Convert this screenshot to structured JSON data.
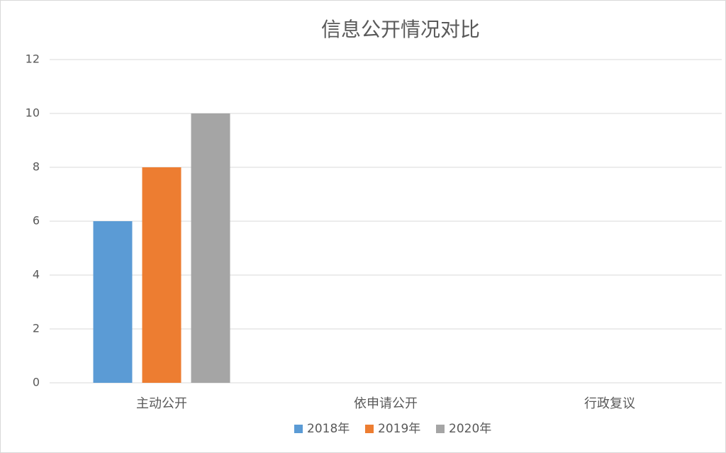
{
  "chart_data": {
    "type": "bar",
    "title": "信息公开情况对比",
    "categories": [
      "主动公开",
      "依申请公开",
      "行政复议"
    ],
    "series": [
      {
        "name": "2018年",
        "color": "#5b9bd5",
        "values": [
          6,
          0,
          0
        ]
      },
      {
        "name": "2019年",
        "color": "#ed7d31",
        "values": [
          8,
          0,
          0
        ]
      },
      {
        "name": "2020年",
        "color": "#a5a5a5",
        "values": [
          10,
          0,
          0
        ]
      }
    ],
    "ylim": [
      0,
      12
    ],
    "yticks": [
      0,
      2,
      4,
      6,
      8,
      10,
      12
    ],
    "grid": true,
    "legend": "bottom"
  }
}
